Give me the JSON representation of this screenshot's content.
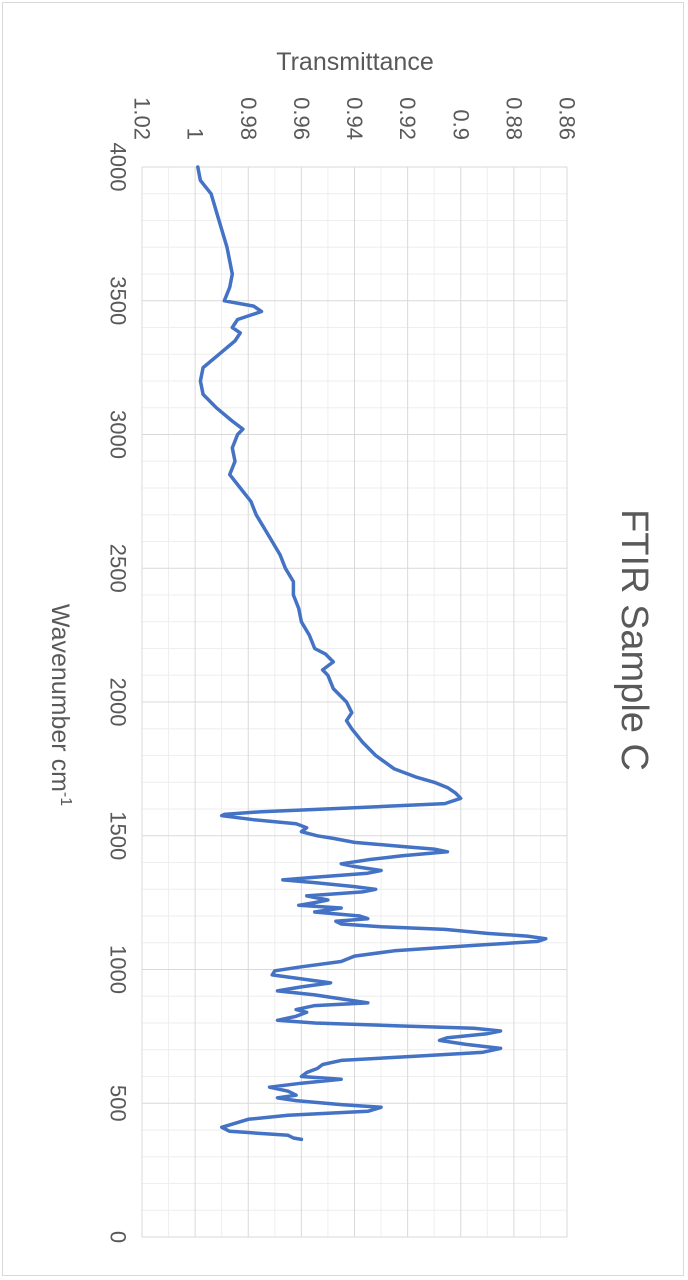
{
  "chart_data": {
    "type": "line",
    "title": "FTIR Sample C",
    "xlabel": "Wavenumber cm",
    "xlabel_superscript": "-1",
    "ylabel": "Transmittance",
    "xlim": [
      0,
      4000
    ],
    "ylim": [
      0.86,
      1.02
    ],
    "x_ticks": [
      0,
      500,
      1000,
      1500,
      2000,
      2500,
      3000,
      3500,
      4000
    ],
    "y_ticks": [
      0.86,
      0.88,
      0.9,
      0.92,
      0.94,
      0.96,
      0.98,
      1,
      1.02
    ],
    "x_tick_labels": [
      "0",
      "500",
      "1000",
      "1500",
      "2000",
      "2500",
      "3000",
      "3500",
      "4000"
    ],
    "y_tick_labels": [
      "0.86",
      "0.88",
      "0.9",
      "0.92",
      "0.94",
      "0.96",
      "0.98",
      "1",
      "1.02"
    ],
    "grid": true,
    "orientation": "rotated 90 degrees clockwise",
    "line_color": "#4472c4",
    "series": [
      {
        "values": [
          [
            4000,
            0.999
          ],
          [
            3950,
            0.998
          ],
          [
            3900,
            0.994
          ],
          [
            3800,
            0.991
          ],
          [
            3700,
            0.988
          ],
          [
            3600,
            0.986
          ],
          [
            3550,
            0.987
          ],
          [
            3500,
            0.989
          ],
          [
            3480,
            0.978
          ],
          [
            3460,
            0.975
          ],
          [
            3430,
            0.984
          ],
          [
            3400,
            0.986
          ],
          [
            3380,
            0.983
          ],
          [
            3350,
            0.985
          ],
          [
            3300,
            0.991
          ],
          [
            3250,
            0.997
          ],
          [
            3200,
            0.998
          ],
          [
            3150,
            0.997
          ],
          [
            3100,
            0.992
          ],
          [
            3050,
            0.986
          ],
          [
            3020,
            0.982
          ],
          [
            3000,
            0.984
          ],
          [
            2950,
            0.986
          ],
          [
            2900,
            0.985
          ],
          [
            2850,
            0.987
          ],
          [
            2800,
            0.983
          ],
          [
            2750,
            0.979
          ],
          [
            2700,
            0.977
          ],
          [
            2650,
            0.974
          ],
          [
            2600,
            0.971
          ],
          [
            2550,
            0.968
          ],
          [
            2500,
            0.966
          ],
          [
            2450,
            0.963
          ],
          [
            2400,
            0.963
          ],
          [
            2350,
            0.961
          ],
          [
            2300,
            0.96
          ],
          [
            2250,
            0.957
          ],
          [
            2200,
            0.955
          ],
          [
            2180,
            0.951
          ],
          [
            2150,
            0.948
          ],
          [
            2120,
            0.952
          ],
          [
            2100,
            0.95
          ],
          [
            2050,
            0.948
          ],
          [
            2000,
            0.943
          ],
          [
            1960,
            0.941
          ],
          [
            1930,
            0.943
          ],
          [
            1900,
            0.941
          ],
          [
            1850,
            0.937
          ],
          [
            1800,
            0.932
          ],
          [
            1750,
            0.925
          ],
          [
            1720,
            0.917
          ],
          [
            1700,
            0.91
          ],
          [
            1680,
            0.905
          ],
          [
            1660,
            0.902
          ],
          [
            1640,
            0.9
          ],
          [
            1620,
            0.906
          ],
          [
            1605,
            0.94
          ],
          [
            1590,
            0.975
          ],
          [
            1580,
            0.989
          ],
          [
            1575,
            0.99
          ],
          [
            1560,
            0.978
          ],
          [
            1545,
            0.962
          ],
          [
            1530,
            0.958
          ],
          [
            1515,
            0.96
          ],
          [
            1500,
            0.954
          ],
          [
            1490,
            0.948
          ],
          [
            1475,
            0.94
          ],
          [
            1460,
            0.922
          ],
          [
            1450,
            0.91
          ],
          [
            1440,
            0.905
          ],
          [
            1425,
            0.922
          ],
          [
            1410,
            0.935
          ],
          [
            1395,
            0.945
          ],
          [
            1385,
            0.94
          ],
          [
            1370,
            0.93
          ],
          [
            1360,
            0.935
          ],
          [
            1345,
            0.955
          ],
          [
            1335,
            0.967
          ],
          [
            1325,
            0.955
          ],
          [
            1310,
            0.94
          ],
          [
            1300,
            0.932
          ],
          [
            1290,
            0.937
          ],
          [
            1275,
            0.958
          ],
          [
            1260,
            0.95
          ],
          [
            1250,
            0.955
          ],
          [
            1240,
            0.961
          ],
          [
            1230,
            0.945
          ],
          [
            1215,
            0.955
          ],
          [
            1200,
            0.938
          ],
          [
            1190,
            0.935
          ],
          [
            1180,
            0.947
          ],
          [
            1170,
            0.945
          ],
          [
            1160,
            0.93
          ],
          [
            1150,
            0.906
          ],
          [
            1135,
            0.89
          ],
          [
            1125,
            0.875
          ],
          [
            1115,
            0.868
          ],
          [
            1105,
            0.871
          ],
          [
            1090,
            0.895
          ],
          [
            1070,
            0.925
          ],
          [
            1050,
            0.94
          ],
          [
            1030,
            0.945
          ],
          [
            1010,
            0.96
          ],
          [
            995,
            0.97
          ],
          [
            980,
            0.971
          ],
          [
            965,
            0.96
          ],
          [
            950,
            0.949
          ],
          [
            935,
            0.96
          ],
          [
            920,
            0.969
          ],
          [
            905,
            0.955
          ],
          [
            890,
            0.945
          ],
          [
            875,
            0.935
          ],
          [
            865,
            0.955
          ],
          [
            850,
            0.962
          ],
          [
            840,
            0.958
          ],
          [
            825,
            0.962
          ],
          [
            810,
            0.969
          ],
          [
            800,
            0.955
          ],
          [
            790,
            0.925
          ],
          [
            780,
            0.895
          ],
          [
            770,
            0.885
          ],
          [
            760,
            0.89
          ],
          [
            745,
            0.905
          ],
          [
            735,
            0.908
          ],
          [
            720,
            0.898
          ],
          [
            705,
            0.885
          ],
          [
            690,
            0.892
          ],
          [
            675,
            0.918
          ],
          [
            660,
            0.945
          ],
          [
            645,
            0.952
          ],
          [
            630,
            0.954
          ],
          [
            615,
            0.958
          ],
          [
            600,
            0.96
          ],
          [
            590,
            0.945
          ],
          [
            575,
            0.96
          ],
          [
            560,
            0.972
          ],
          [
            545,
            0.965
          ],
          [
            530,
            0.962
          ],
          [
            520,
            0.969
          ],
          [
            510,
            0.962
          ],
          [
            495,
            0.945
          ],
          [
            485,
            0.93
          ],
          [
            470,
            0.935
          ],
          [
            455,
            0.965
          ],
          [
            440,
            0.98
          ],
          [
            425,
            0.985
          ],
          [
            410,
            0.99
          ],
          [
            395,
            0.987
          ],
          [
            380,
            0.965
          ],
          [
            370,
            0.963
          ],
          [
            365,
            0.96
          ]
        ]
      }
    ]
  }
}
